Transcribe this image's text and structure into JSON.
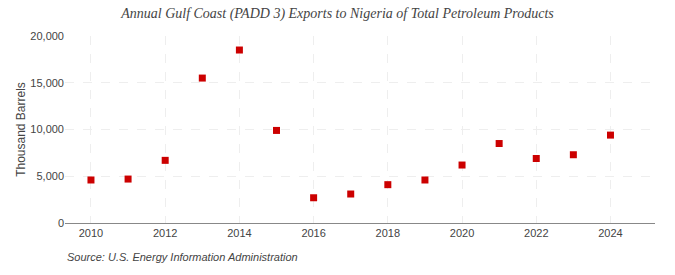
{
  "chart_data": {
    "type": "scatter",
    "title": "Annual Gulf Coast (PADD 3) Exports to Nigeria of Total Petroleum Products",
    "ylabel": "Thousand Barrels",
    "annotations": [
      "Source: U.S. Energy Information Administration"
    ],
    "x": [
      2010,
      2011,
      2012,
      2013,
      2014,
      2015,
      2016,
      2017,
      2018,
      2019,
      2020,
      2021,
      2022,
      2023,
      2024
    ],
    "values": [
      4600,
      4700,
      6700,
      15500,
      18500,
      9900,
      2700,
      3100,
      4100,
      4600,
      6200,
      8500,
      6900,
      7300,
      9400
    ],
    "color": "#cc0000",
    "marker": "square",
    "xlim": [
      2009.3,
      2025.2
    ],
    "xticks": [
      2010,
      2012,
      2014,
      2016,
      2018,
      2020,
      2022,
      2024
    ],
    "ylim": [
      0,
      20000
    ],
    "yticks": [
      0,
      {
        "value": 5000,
        "label": "5,000"
      },
      {
        "value": 10000,
        "label": "10,000"
      },
      {
        "value": 15000,
        "label": "15,000"
      },
      {
        "value": 20000,
        "label": "20,000"
      }
    ],
    "grid": true
  }
}
